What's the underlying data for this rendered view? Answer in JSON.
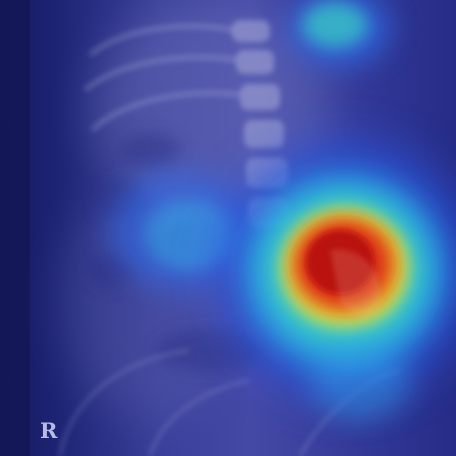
{
  "image": {
    "kind": "abdominal-radiograph-with-attention-heatmap",
    "heatmap_colormap": "jet",
    "heatmap_palette": {
      "low": "#1b1f7a",
      "mid_low": "#2f5ee6",
      "mid": "#2bd3d8",
      "mid_high": "#f2d23a",
      "high": "#c41414"
    },
    "hotspot_region": "right-center",
    "marker": {
      "text": "R",
      "color": "#b7b9e6"
    }
  }
}
